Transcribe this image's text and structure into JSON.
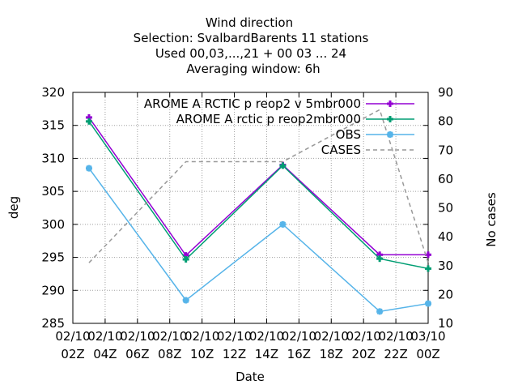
{
  "title_lines": [
    "Wind direction",
    "Selection: SvalbardBarents      11 stations",
    "Used  00,03,...,21  + 00 03 ... 24",
    "Averaging window:  6h"
  ],
  "chart_data": {
    "type": "line",
    "title": "Wind direction",
    "xlabel": "Date",
    "ylabel": "deg",
    "y2label": "No cases",
    "ylim": [
      285,
      320
    ],
    "y2lim": [
      10,
      90
    ],
    "yticks": [
      285,
      290,
      295,
      300,
      305,
      310,
      315,
      320
    ],
    "y2ticks": [
      10,
      20,
      30,
      40,
      50,
      60,
      70,
      80,
      90
    ],
    "grid": true,
    "legend_position": "top-right",
    "x_ticks": [
      {
        "h": 2,
        "line1": "02/10",
        "line2": "02Z"
      },
      {
        "h": 4,
        "line1": "02/10",
        "line2": "04Z"
      },
      {
        "h": 6,
        "line1": "02/10",
        "line2": "06Z"
      },
      {
        "h": 8,
        "line1": "02/10",
        "line2": "08Z"
      },
      {
        "h": 10,
        "line1": "02/10",
        "line2": "10Z"
      },
      {
        "h": 12,
        "line1": "02/10",
        "line2": "12Z"
      },
      {
        "h": 14,
        "line1": "02/10",
        "line2": "14Z"
      },
      {
        "h": 16,
        "line1": "02/10",
        "line2": "16Z"
      },
      {
        "h": 18,
        "line1": "02/10",
        "line2": "18Z"
      },
      {
        "h": 20,
        "line1": "02/10",
        "line2": "20Z"
      },
      {
        "h": 22,
        "line1": "02/10",
        "line2": "22Z"
      },
      {
        "h": 24,
        "line1": "03/10",
        "line2": "00Z"
      }
    ],
    "series": [
      {
        "name": "AROME_ARCTIC_preop2_v5mbr000",
        "legend_label": "AROME A RCTIC p reop2 v 5mbr000",
        "color": "#9400d3",
        "axis": "y1",
        "marker": "plus",
        "x": [
          3,
          9,
          15,
          21,
          24
        ],
        "y": [
          316.2,
          295.3,
          309.0,
          295.4,
          295.4
        ]
      },
      {
        "name": "AROME_Arctic_preop2mbr000",
        "legend_label": "AROME A rctic p reop2mbr000",
        "color": "#009e73",
        "axis": "y1",
        "marker": "plus",
        "x": [
          3,
          9,
          15,
          21,
          24
        ],
        "y": [
          315.6,
          294.7,
          308.9,
          294.8,
          293.3
        ]
      },
      {
        "name": "OBS",
        "legend_label": "OBS",
        "color": "#56b4e9",
        "axis": "y1",
        "marker": "star",
        "x": [
          3,
          9,
          15,
          21,
          24
        ],
        "y": [
          308.5,
          288.5,
          300.0,
          286.8,
          288.0
        ]
      },
      {
        "name": "CASES",
        "legend_label": "CASES",
        "color": "#999999",
        "axis": "y2",
        "marker": "none",
        "dashed": true,
        "x": [
          3,
          9,
          15,
          21,
          24
        ],
        "y": [
          31,
          66,
          66,
          84,
          31
        ]
      }
    ]
  }
}
